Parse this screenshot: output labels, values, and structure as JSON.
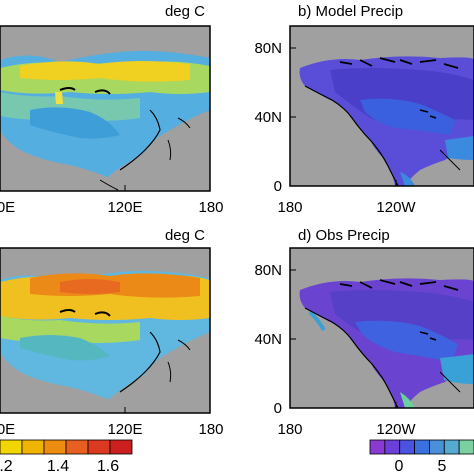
{
  "panels": [
    {
      "unit_label": "deg C",
      "x_ticks": [
        "0E",
        "120E",
        "180"
      ]
    },
    {
      "title": "b) Model Precip",
      "y_ticks": [
        "80N",
        "40N",
        "0"
      ],
      "x_ticks": [
        "180",
        "120W"
      ]
    },
    {
      "unit_label": "deg C",
      "x_ticks": [
        "0E",
        "120E",
        "180"
      ]
    },
    {
      "title": "d) Obs Precip",
      "y_ticks": [
        "80N",
        "40N",
        "0"
      ],
      "x_ticks": [
        "180",
        "120W"
      ]
    }
  ],
  "colorbars": {
    "temperature": {
      "labels": [
        ".2",
        "1.4",
        "1.6"
      ],
      "colors": [
        "#f2d600",
        "#f0b400",
        "#ec8c10",
        "#e86020",
        "#dc3a20",
        "#cc2020"
      ]
    },
    "precip": {
      "labels": [
        "0",
        "5"
      ],
      "colors": [
        "#8a3ad0",
        "#6a40d8",
        "#4a52e0",
        "#3a70e0",
        "#4a90d8",
        "#55aad0",
        "#7ad0a0"
      ]
    }
  },
  "colors": {
    "land_gray": "#a0a0a0",
    "ocean_white": "#ffffff"
  }
}
